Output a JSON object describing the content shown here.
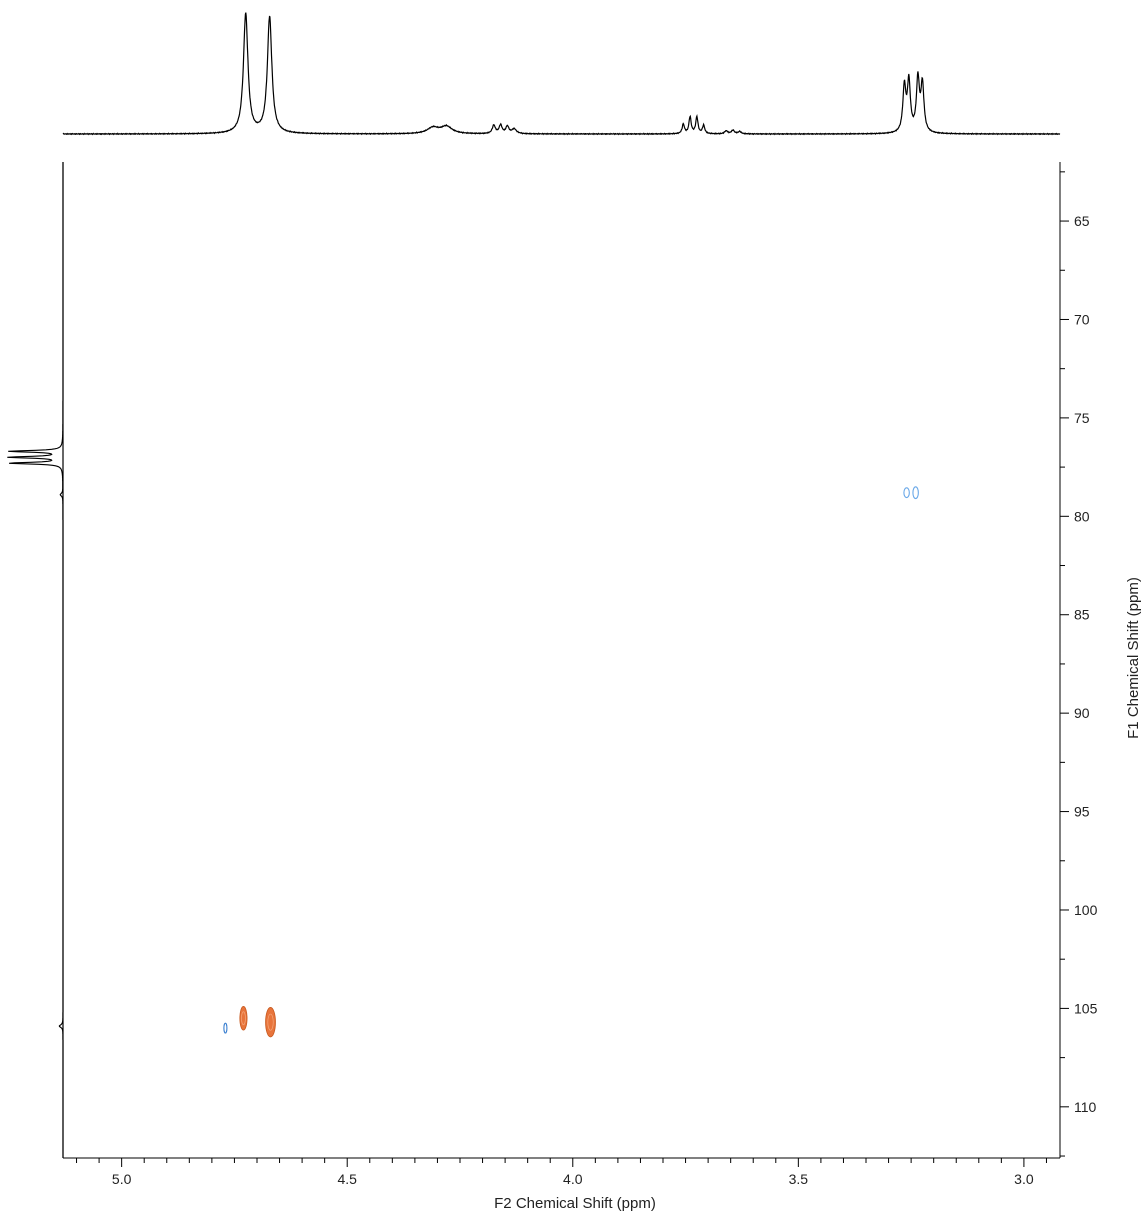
{
  "chart_data": {
    "type": "heatmap",
    "subtype": "2D NMR contour plot (HSQC-style) with 1D projections",
    "xlabel": "F2 Chemical Shift (ppm)",
    "ylabel": "F1 Chemical Shift (ppm)",
    "x_axis": {
      "range": [
        5.13,
        2.92
      ],
      "reversed": true,
      "major_ticks": [
        5.0,
        4.5,
        4.0,
        3.5,
        3.0
      ],
      "major_tick_labels": [
        "5.0",
        "4.5",
        "4.0",
        "3.5",
        "3.0"
      ],
      "minor_step": 0.05,
      "position": "bottom"
    },
    "y_axis": {
      "range": [
        62,
        112.6
      ],
      "increasing_downward": true,
      "major_ticks": [
        65,
        70,
        75,
        80,
        85,
        90,
        95,
        100,
        105,
        110
      ],
      "major_tick_labels": [
        "65",
        "70",
        "75",
        "80",
        "85",
        "90",
        "95",
        "100",
        "105",
        "110"
      ],
      "minor_step": 2.5,
      "position": "right"
    },
    "grid": false,
    "legend": "none",
    "cross_peaks": [
      {
        "x": 4.73,
        "y": 105.5,
        "phase": "positive",
        "color": "#e8743b",
        "rx": 0.008,
        "ry": 0.6
      },
      {
        "x": 4.67,
        "y": 105.7,
        "phase": "positive",
        "color": "#e8743b",
        "rx": 0.011,
        "ry": 0.75
      },
      {
        "x": 4.77,
        "y": 106.0,
        "phase": "negative",
        "color": "#3a7fd0",
        "rx": 0.003,
        "ry": 0.25
      },
      {
        "x": 3.26,
        "y": 78.8,
        "phase": "negative",
        "color": "#6aa8e8",
        "rx": 0.006,
        "ry": 0.25
      },
      {
        "x": 3.24,
        "y": 78.8,
        "phase": "negative",
        "color": "#6aa8e8",
        "rx": 0.006,
        "ry": 0.3
      }
    ],
    "f2_projection": {
      "description": "1H spectrum along top",
      "peaks": [
        {
          "x": 4.725,
          "height": 1.0,
          "width": 0.006
        },
        {
          "x": 4.672,
          "height": 0.97,
          "width": 0.006
        },
        {
          "x": 4.31,
          "height": 0.05,
          "width": 0.015
        },
        {
          "x": 4.28,
          "height": 0.06,
          "width": 0.015
        },
        {
          "x": 4.175,
          "height": 0.07,
          "width": 0.004
        },
        {
          "x": 4.16,
          "height": 0.07,
          "width": 0.004
        },
        {
          "x": 4.145,
          "height": 0.06,
          "width": 0.004
        },
        {
          "x": 4.13,
          "height": 0.04,
          "width": 0.006
        },
        {
          "x": 3.755,
          "height": 0.08,
          "width": 0.003
        },
        {
          "x": 3.74,
          "height": 0.14,
          "width": 0.003
        },
        {
          "x": 3.725,
          "height": 0.14,
          "width": 0.003
        },
        {
          "x": 3.71,
          "height": 0.07,
          "width": 0.003
        },
        {
          "x": 3.66,
          "height": 0.025,
          "width": 0.004
        },
        {
          "x": 3.645,
          "height": 0.03,
          "width": 0.004
        },
        {
          "x": 3.63,
          "height": 0.02,
          "width": 0.004
        },
        {
          "x": 3.265,
          "height": 0.38,
          "width": 0.004
        },
        {
          "x": 3.255,
          "height": 0.42,
          "width": 0.004
        },
        {
          "x": 3.235,
          "height": 0.44,
          "width": 0.004
        },
        {
          "x": 3.225,
          "height": 0.4,
          "width": 0.004
        }
      ]
    },
    "f1_projection": {
      "description": "13C spectrum along left",
      "peaks": [
        {
          "y": 76.7,
          "height": 1.0,
          "width": 0.05
        },
        {
          "y": 77.0,
          "height": 1.0,
          "width": 0.05
        },
        {
          "y": 77.3,
          "height": 1.0,
          "width": 0.05
        },
        {
          "y": 78.9,
          "height": 0.05,
          "width": 0.08
        },
        {
          "y": 105.9,
          "height": 0.07,
          "width": 0.08
        }
      ]
    }
  }
}
